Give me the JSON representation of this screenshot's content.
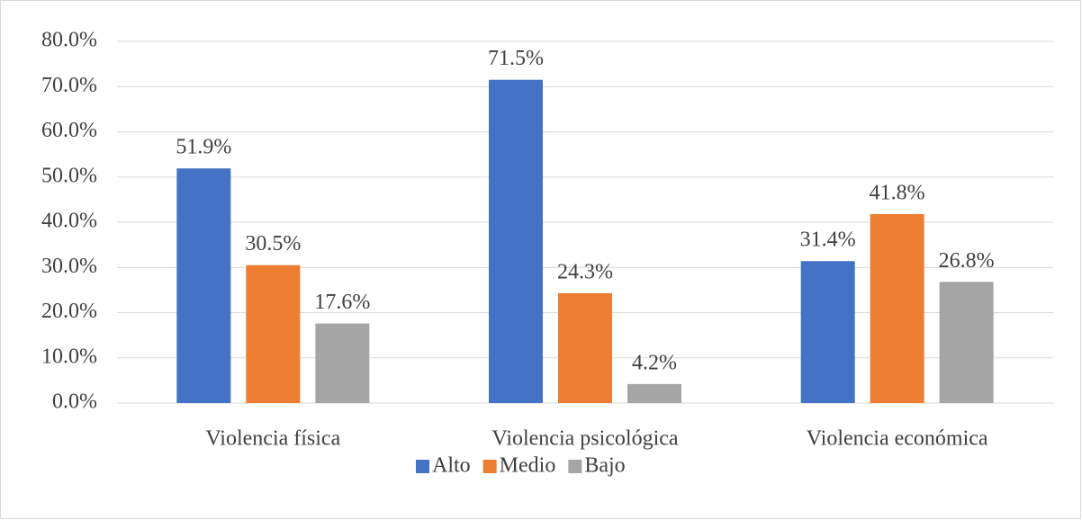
{
  "chart_data": {
    "type": "bar",
    "categories": [
      "Violencia física",
      "Violencia psicológica",
      "Violencia económica"
    ],
    "series": [
      {
        "name": "Alto",
        "color": "#4472c4",
        "values": [
          51.9,
          71.5,
          31.4
        ],
        "value_labels": [
          "51.9%",
          "71.5%",
          "31.4%"
        ]
      },
      {
        "name": "Medio",
        "color": "#ed7d31",
        "values": [
          30.5,
          24.3,
          41.8
        ],
        "value_labels": [
          "30.5%",
          "24.3%",
          "41.8%"
        ]
      },
      {
        "name": "Bajo",
        "color": "#a5a5a5",
        "values": [
          17.6,
          4.2,
          26.8
        ],
        "value_labels": [
          "17.6%",
          "4.2%",
          "26.8%"
        ]
      }
    ],
    "ylim": [
      0,
      80
    ],
    "yticks": [
      {
        "value": 0,
        "label": "0.0%"
      },
      {
        "value": 10,
        "label": "10.0%"
      },
      {
        "value": 20,
        "label": "20.0%"
      },
      {
        "value": 30,
        "label": "30.0%"
      },
      {
        "value": 40,
        "label": "40.0%"
      },
      {
        "value": 50,
        "label": "50.0%"
      },
      {
        "value": 60,
        "label": "60.0%"
      },
      {
        "value": 70,
        "label": "70.0%"
      },
      {
        "value": 80,
        "label": "80.0%"
      }
    ],
    "grid": true,
    "legend": "bottom"
  }
}
